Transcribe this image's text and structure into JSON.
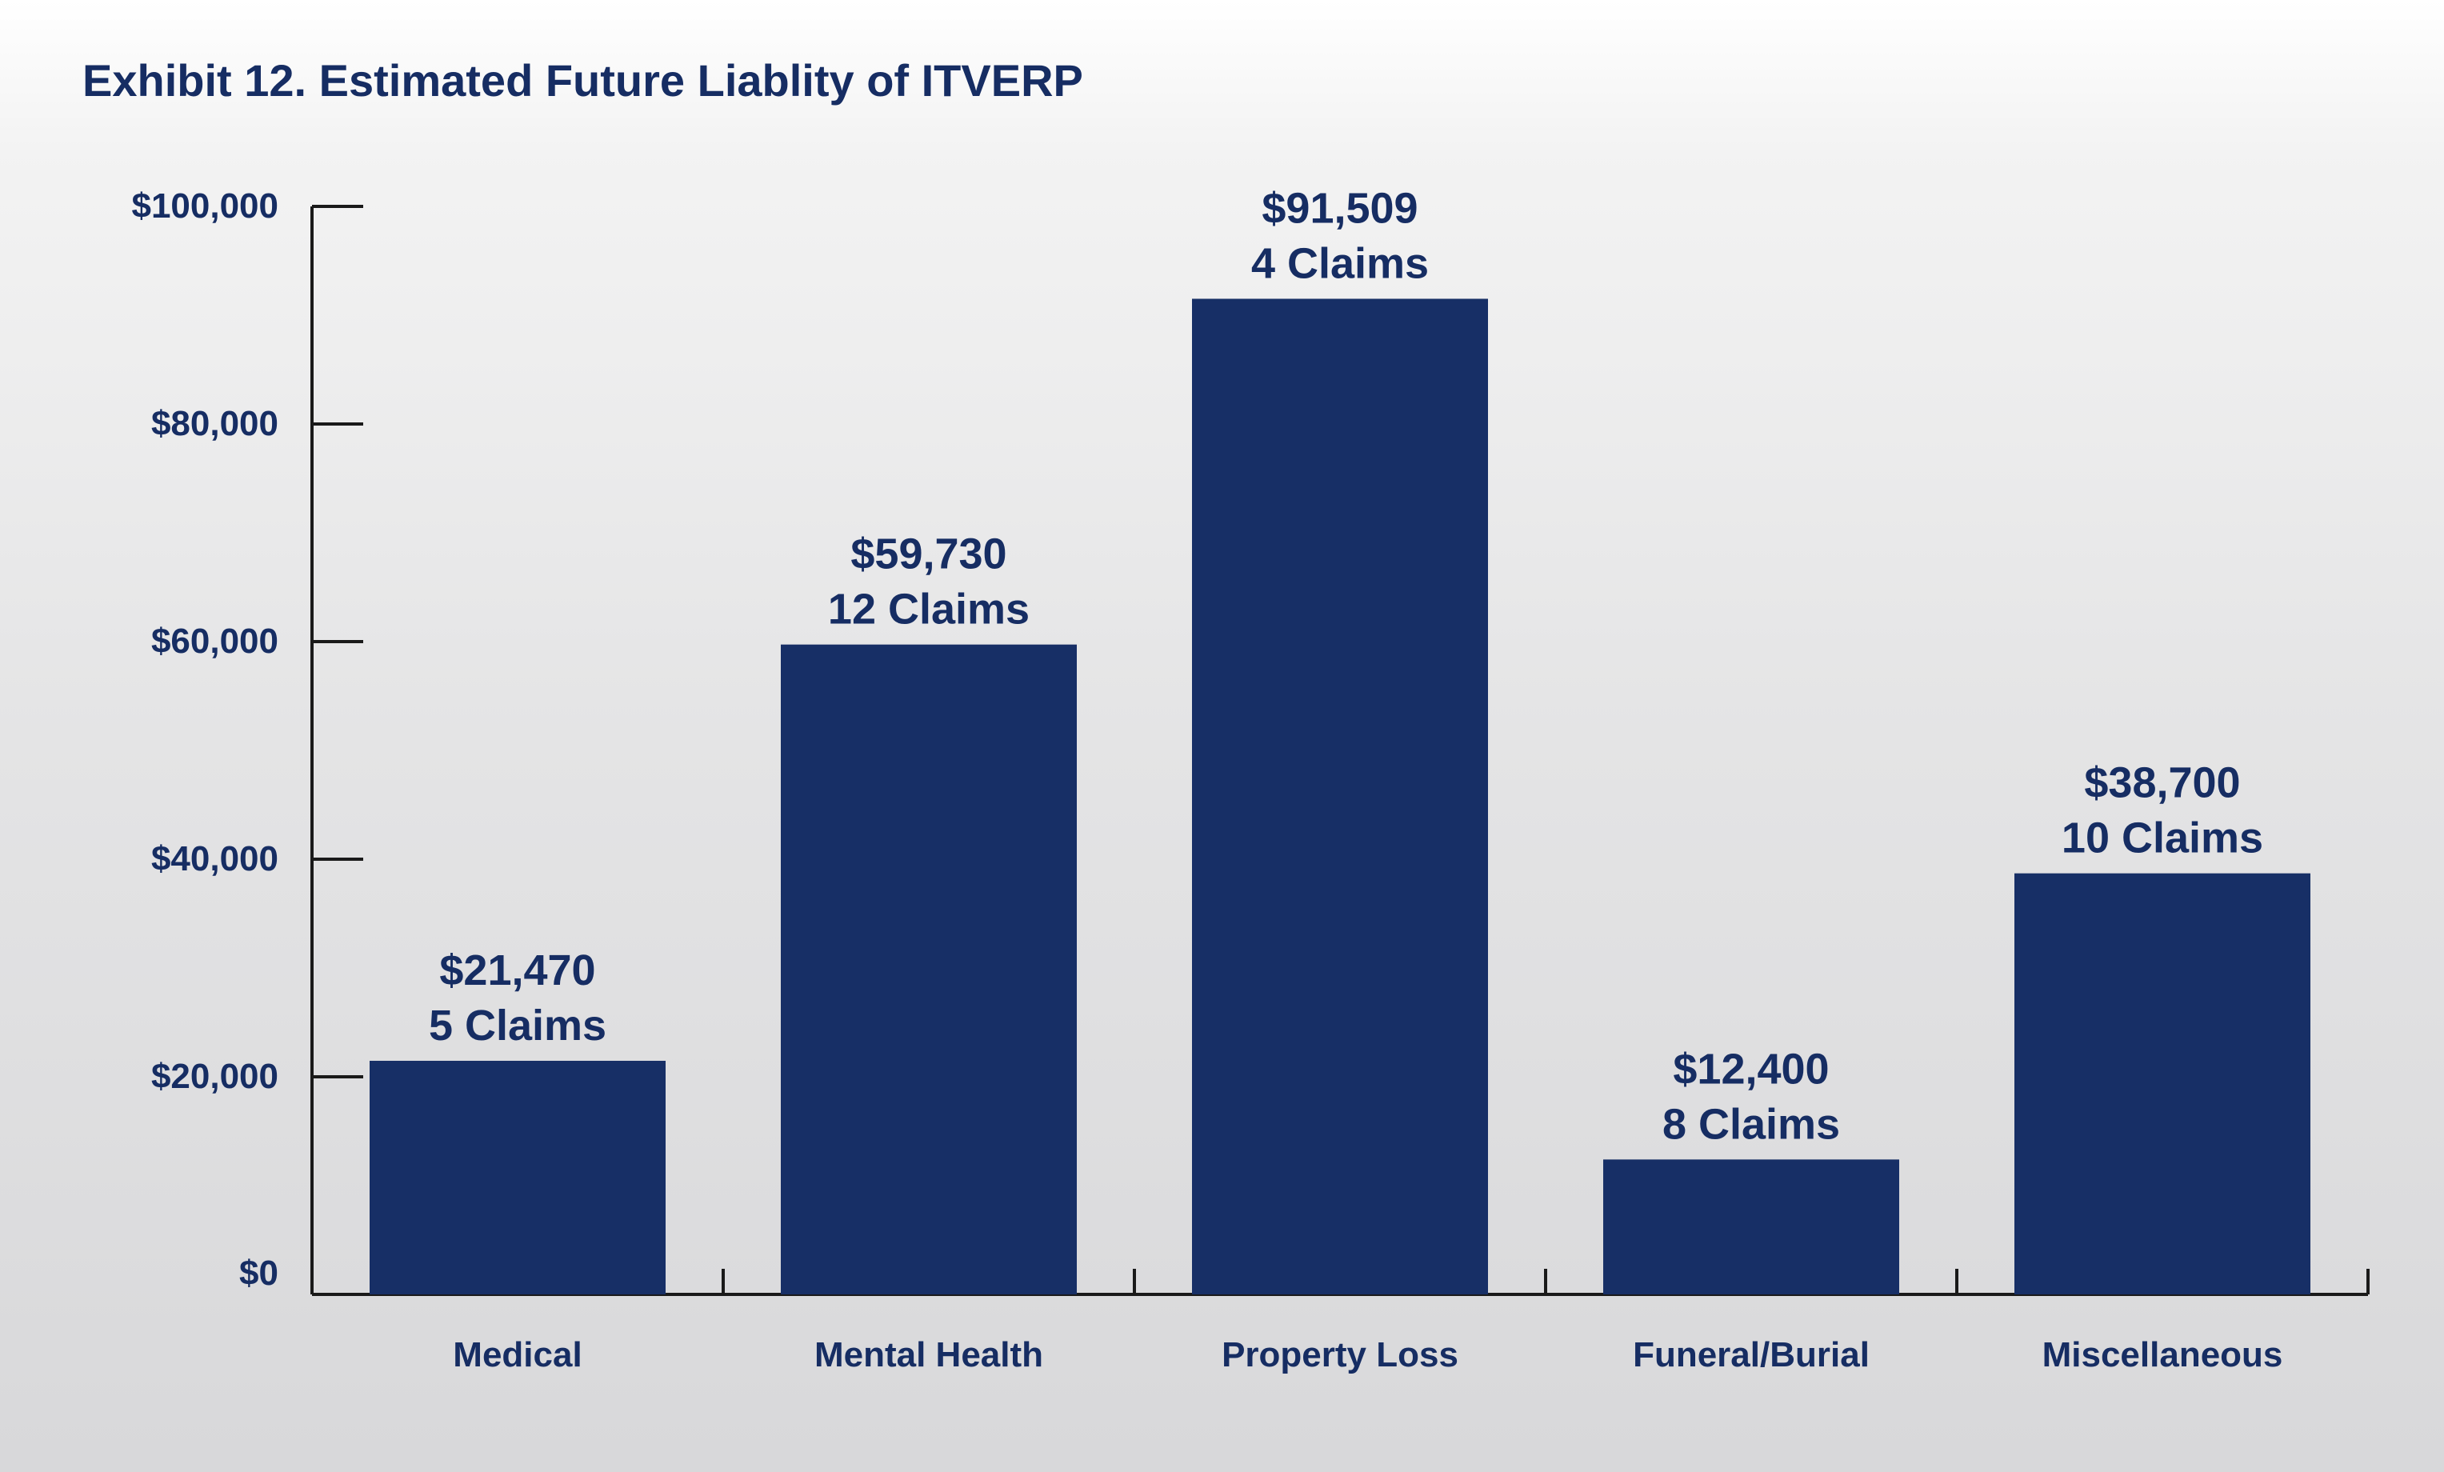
{
  "chart_data": {
    "type": "bar",
    "title": "Exhibit 12. Estimated Future Liablity of ITVERP",
    "categories": [
      "Medical",
      "Mental Health",
      "Property Loss",
      "Funeral/Burial",
      "Miscellaneous"
    ],
    "values": [
      21470,
      59730,
      91509,
      12400,
      38700
    ],
    "value_labels": [
      "$21,470",
      "$59,730",
      "$91,509",
      "$12,400",
      "$38,700"
    ],
    "claim_labels": [
      "5 Claims",
      "12 Claims",
      "4 Claims",
      "8 Claims",
      "10 Claims"
    ],
    "ylim": [
      0,
      100000
    ],
    "yticks": [
      0,
      20000,
      40000,
      60000,
      80000,
      100000
    ],
    "ytick_labels": [
      "$0",
      "$20,000",
      "$40,000",
      "$60,000",
      "$80,000",
      "$100,000"
    ],
    "xlabel": "",
    "ylabel": "",
    "grid": false,
    "bar_color": "#172f66",
    "text_color": "#162d63",
    "axis_color": "#1a1a1a"
  }
}
